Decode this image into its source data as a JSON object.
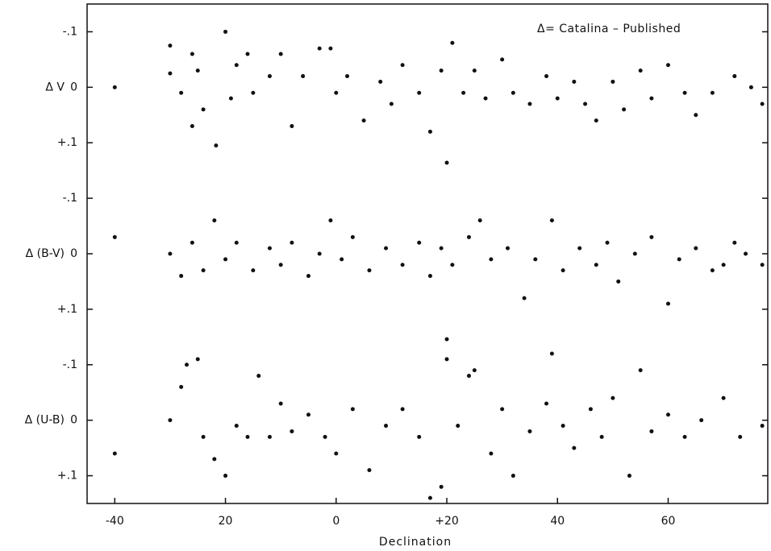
{
  "chart_data": [
    {
      "type": "scatter",
      "ylabel": "Δ V",
      "annotation": "Δ= Catalina – Published",
      "color": "#111111",
      "y_inverted": true,
      "xlim": [
        -45,
        78
      ],
      "ylim": [
        -0.15,
        0.15
      ],
      "yticks": [
        {
          "value": -0.1,
          "label": "-.1"
        },
        0,
        {
          "value": 0.1,
          "label": "+.1"
        }
      ],
      "x": [
        -40,
        -30,
        -30,
        -28,
        -26,
        -26,
        -25,
        -24,
        -21.7,
        -20,
        -19,
        -18,
        -16,
        -15,
        -12,
        -10,
        -8,
        -6,
        -3,
        -1,
        0,
        2,
        5,
        8,
        10,
        12,
        15,
        17,
        19,
        20,
        21,
        23,
        25,
        27,
        30,
        32,
        35,
        38,
        40,
        43,
        45,
        47,
        50,
        52,
        55,
        57,
        60,
        63,
        65,
        68,
        72,
        75,
        77
      ],
      "values": [
        0,
        -0.075,
        -0.025,
        0.01,
        0.07,
        -0.06,
        -0.03,
        0.04,
        0.105,
        -0.1,
        0.02,
        -0.04,
        -0.06,
        0.01,
        -0.02,
        -0.06,
        0.07,
        -0.02,
        -0.07,
        -0.07,
        0.01,
        -0.02,
        0.06,
        -0.01,
        0.03,
        -0.04,
        0.01,
        0.08,
        -0.03,
        0.136,
        -0.08,
        0.01,
        -0.03,
        0.02,
        -0.05,
        0.01,
        0.03,
        -0.02,
        0.02,
        -0.01,
        0.03,
        0.06,
        -0.01,
        0.04,
        -0.03,
        0.02,
        -0.04,
        0.01,
        0.05,
        0.01,
        -0.02,
        0,
        0.03
      ]
    },
    {
      "type": "scatter",
      "ylabel": "Δ (B-V)",
      "color": "#111111",
      "y_inverted": true,
      "xlim": [
        -45,
        78
      ],
      "ylim": [
        -0.15,
        0.15
      ],
      "yticks": [
        {
          "value": -0.1,
          "label": "-.1"
        },
        0,
        {
          "value": 0.1,
          "label": "+.1"
        }
      ],
      "x": [
        -40,
        -30,
        -28,
        -26,
        -24,
        -22,
        -20,
        -18,
        -15,
        -12,
        -10,
        -8,
        -5,
        -3,
        -1,
        1,
        3,
        6,
        9,
        12,
        15,
        17,
        19,
        21,
        24,
        26,
        28,
        31,
        34,
        36,
        39,
        41,
        44,
        47,
        49,
        51,
        54,
        57,
        60,
        62,
        65,
        68,
        70,
        72,
        74,
        77
      ],
      "values": [
        -0.03,
        0,
        0.04,
        -0.02,
        0.03,
        -0.06,
        0.01,
        -0.02,
        0.03,
        -0.01,
        0.02,
        -0.02,
        0.04,
        0,
        -0.06,
        0.01,
        -0.03,
        0.03,
        -0.01,
        0.02,
        -0.02,
        0.04,
        -0.01,
        0.02,
        -0.03,
        -0.06,
        0.01,
        -0.01,
        0.08,
        0.01,
        -0.06,
        0.03,
        -0.01,
        0.02,
        -0.02,
        0.05,
        0,
        -0.03,
        0.09,
        0.01,
        -0.01,
        0.03,
        0.02,
        -0.02,
        0,
        0.02
      ]
    },
    {
      "type": "scatter",
      "ylabel": "Δ (U-B)",
      "xlabel": "Declination",
      "color": "#111111",
      "y_inverted": true,
      "xlim": [
        -45,
        78
      ],
      "ylim": [
        -0.15,
        0.15
      ],
      "xticks": [
        -40,
        {
          "value": -20,
          "label": "20"
        },
        0,
        {
          "value": 20,
          "label": "+20"
        },
        40,
        60
      ],
      "yticks": [
        {
          "value": -0.1,
          "label": "-.1"
        },
        0,
        {
          "value": 0.1,
          "label": "+.1"
        }
      ],
      "x": [
        -40,
        -30,
        -28,
        -27,
        -25,
        -24,
        -22,
        -20,
        -18,
        -16,
        -14,
        -12,
        -10,
        -8,
        -5,
        -2,
        0,
        3,
        6,
        9,
        12,
        15,
        17,
        19,
        20,
        20,
        22,
        24,
        25,
        28,
        30,
        32,
        35,
        38,
        39,
        41,
        43,
        46,
        48,
        50,
        53,
        55,
        57,
        60,
        63,
        66,
        70,
        73,
        77
      ],
      "values": [
        0.06,
        0,
        -0.06,
        -0.1,
        -0.11,
        0.03,
        0.07,
        0.1,
        0.01,
        0.03,
        -0.08,
        0.03,
        -0.03,
        0.02,
        -0.01,
        0.03,
        0.06,
        -0.02,
        0.09,
        0.01,
        -0.02,
        0.03,
        0.14,
        0.12,
        -0.146,
        -0.11,
        0.01,
        -0.08,
        -0.09,
        0.06,
        -0.02,
        0.1,
        0.02,
        -0.03,
        -0.12,
        0.01,
        0.05,
        -0.02,
        0.03,
        -0.04,
        0.1,
        -0.09,
        0.02,
        -0.01,
        0.03,
        0,
        -0.04,
        0.03,
        0.01
      ]
    }
  ]
}
